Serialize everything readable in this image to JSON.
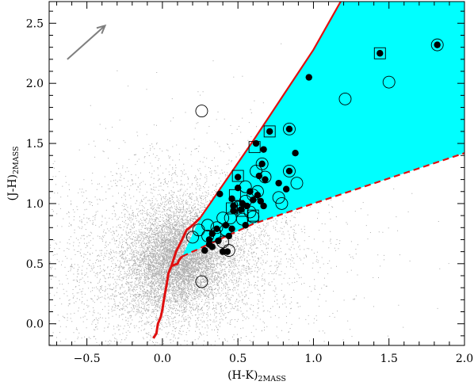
{
  "chart_data": {
    "type": "scatter",
    "title": "",
    "xlabel": "(H-K)",
    "xlabel_sub": "2MASS",
    "ylabel": "(J-H)",
    "ylabel_sub": "2MASS",
    "xlim": [
      -0.75,
      2.0
    ],
    "ylim": [
      -0.18,
      2.68
    ],
    "x_ticks": [
      -0.5,
      0.0,
      0.5,
      1.0,
      1.5,
      2.0
    ],
    "x_tick_labels": [
      "−0.5",
      "0.0",
      "0.5",
      "1.0",
      "1.5",
      "2.0"
    ],
    "y_ticks": [
      0.0,
      0.5,
      1.0,
      1.5,
      2.0,
      2.5
    ],
    "y_tick_labels": [
      "0.0",
      "0.5",
      "1.0",
      "1.5",
      "2.0",
      "2.5"
    ],
    "grid": false,
    "colors": {
      "field": "#909090",
      "region_fill": "#00ffff",
      "boundary": "#e01010",
      "arrow": "#7f7f7f",
      "markers": "#000000"
    },
    "reddening_vector": {
      "from": [
        -0.63,
        2.2
      ],
      "to": [
        -0.38,
        2.48
      ]
    },
    "field_stars": {
      "center": [
        0.12,
        0.55
      ],
      "note": "dense grey field-star cloud"
    },
    "main_sequence": [
      [
        -0.06,
        -0.12
      ],
      [
        -0.04,
        -0.08
      ],
      [
        -0.03,
        0.0
      ],
      [
        -0.01,
        0.06
      ],
      [
        0.0,
        0.12
      ],
      [
        0.01,
        0.2
      ],
      [
        0.02,
        0.27
      ],
      [
        0.03,
        0.34
      ],
      [
        0.04,
        0.42
      ],
      [
        0.06,
        0.48
      ],
      [
        0.1,
        0.5
      ],
      [
        0.11,
        0.53
      ],
      [
        0.13,
        0.56
      ]
    ],
    "giant_branch": [
      [
        0.06,
        0.48
      ],
      [
        0.09,
        0.6
      ],
      [
        0.13,
        0.7
      ],
      [
        0.16,
        0.78
      ],
      [
        0.2,
        0.82
      ],
      [
        0.25,
        0.88
      ]
    ],
    "reddening_region": {
      "upper_boundary": [
        [
          0.25,
          0.88
        ],
        [
          0.37,
          1.1
        ],
        [
          0.6,
          1.52
        ],
        [
          0.8,
          1.9
        ],
        [
          1.0,
          2.28
        ],
        [
          1.18,
          2.68
        ]
      ],
      "lower_boundary_dashed": [
        [
          0.13,
          0.56
        ],
        [
          0.6,
          0.83
        ],
        [
          1.0,
          1.0
        ],
        [
          1.5,
          1.21
        ],
        [
          2.0,
          1.42
        ]
      ],
      "open_side_x": 2.0
    },
    "series": [
      {
        "marker": "filled-circle",
        "points": [
          [
            1.82,
            2.32
          ],
          [
            1.44,
            2.25
          ],
          [
            0.97,
            2.05
          ],
          [
            0.71,
            1.6
          ],
          [
            0.84,
            1.62
          ],
          [
            0.62,
            1.5
          ],
          [
            0.67,
            1.45
          ],
          [
            0.88,
            1.42
          ],
          [
            0.66,
            1.33
          ],
          [
            0.84,
            1.27
          ],
          [
            0.68,
            1.2
          ],
          [
            0.5,
            1.22
          ],
          [
            0.64,
            1.23
          ],
          [
            0.5,
            1.13
          ],
          [
            0.77,
            1.17
          ],
          [
            0.38,
            1.08
          ],
          [
            0.58,
            1.1
          ],
          [
            0.63,
            1.07
          ],
          [
            0.6,
            1.03
          ],
          [
            0.82,
            1.12
          ],
          [
            0.46,
            1.04
          ],
          [
            0.47,
            0.98
          ],
          [
            0.65,
            1.02
          ],
          [
            0.53,
            1.0
          ],
          [
            0.56,
            0.98
          ],
          [
            0.67,
            0.98
          ],
          [
            0.52,
            0.95
          ],
          [
            0.47,
            0.94
          ],
          [
            0.36,
            0.79
          ],
          [
            0.42,
            0.82
          ],
          [
            0.46,
            0.79
          ],
          [
            0.55,
            0.82
          ],
          [
            0.33,
            0.75
          ],
          [
            0.44,
            0.73
          ],
          [
            0.31,
            0.7
          ],
          [
            0.37,
            0.69
          ],
          [
            0.33,
            0.64
          ],
          [
            0.28,
            0.61
          ],
          [
            0.31,
            0.66
          ],
          [
            0.4,
            0.6
          ],
          [
            0.43,
            0.6
          ]
        ]
      },
      {
        "marker": "open-circle",
        "points": [
          [
            0.26,
            1.77
          ],
          [
            1.21,
            1.87
          ],
          [
            1.5,
            2.01
          ],
          [
            1.82,
            2.32
          ],
          [
            0.84,
            1.62
          ],
          [
            0.66,
            1.33
          ],
          [
            0.84,
            1.27
          ],
          [
            0.89,
            1.17
          ],
          [
            0.62,
            1.27
          ],
          [
            0.68,
            1.22
          ],
          [
            0.55,
            1.14
          ],
          [
            0.63,
            1.1
          ],
          [
            0.77,
            1.05
          ],
          [
            0.79,
            1.0
          ],
          [
            0.6,
            1.07
          ],
          [
            0.55,
            1.02
          ],
          [
            0.5,
            0.97
          ],
          [
            0.58,
            0.93
          ],
          [
            0.4,
            0.88
          ],
          [
            0.45,
            0.88
          ],
          [
            0.53,
            0.87
          ],
          [
            0.6,
            0.89
          ],
          [
            0.3,
            0.82
          ],
          [
            0.36,
            0.8
          ],
          [
            0.24,
            0.78
          ],
          [
            0.42,
            0.78
          ],
          [
            0.3,
            0.73
          ],
          [
            0.2,
            0.72
          ],
          [
            0.4,
            0.68
          ],
          [
            0.44,
            0.61
          ],
          [
            0.26,
            0.35
          ]
        ]
      },
      {
        "marker": "open-square",
        "points": [
          [
            1.44,
            2.25
          ],
          [
            0.71,
            1.6
          ],
          [
            0.61,
            1.47
          ],
          [
            0.5,
            1.23
          ],
          [
            0.48,
            1.07
          ],
          [
            0.5,
            0.98
          ],
          [
            0.53,
            0.94
          ],
          [
            0.46,
            0.96
          ],
          [
            0.6,
            0.9
          ],
          [
            0.35,
            0.73
          ]
        ]
      }
    ]
  }
}
